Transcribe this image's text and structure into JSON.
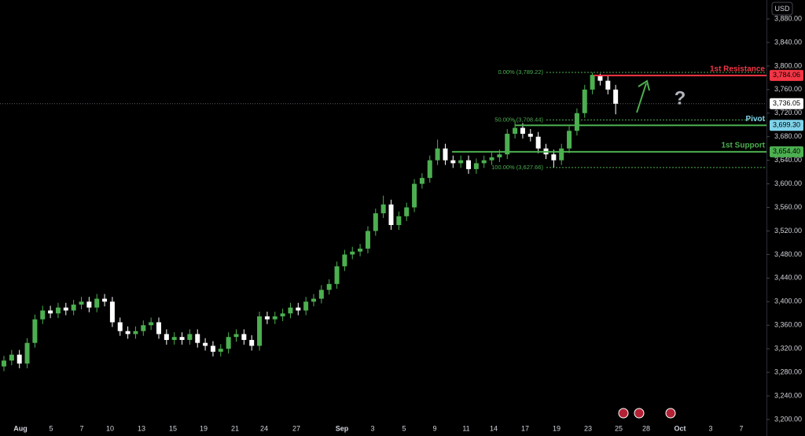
{
  "chart_data": {
    "type": "candlestick",
    "currency": "USD",
    "ylim": [
      3200,
      3880
    ],
    "yticks": [
      {
        "value": 3200,
        "label": "3,200.00"
      },
      {
        "value": 3240,
        "label": "3,240.00"
      },
      {
        "value": 3280,
        "label": "3,280.00"
      },
      {
        "value": 3320,
        "label": "3,320.00"
      },
      {
        "value": 3360,
        "label": "3,360.00"
      },
      {
        "value": 3400,
        "label": "3,400.00"
      },
      {
        "value": 3440,
        "label": "3,440.00"
      },
      {
        "value": 3480,
        "label": "3,480.00"
      },
      {
        "value": 3520,
        "label": "3,520.00"
      },
      {
        "value": 3560,
        "label": "3,560.00"
      },
      {
        "value": 3600,
        "label": "3,600.00"
      },
      {
        "value": 3640,
        "label": "3,640.00"
      },
      {
        "value": 3680,
        "label": "3,680.00"
      },
      {
        "value": 3720,
        "label": "3,720.00"
      },
      {
        "value": 3760,
        "label": "3,760.00"
      },
      {
        "value": 3800,
        "label": "3,800.00"
      },
      {
        "value": 3840,
        "label": "3,840.00"
      },
      {
        "value": 3880,
        "label": "3,880.00"
      }
    ],
    "x_labels": [
      "Aug",
      "5",
      "7",
      "10",
      "13",
      "15",
      "19",
      "21",
      "24",
      "27",
      "Sep",
      "3",
      "5",
      "9",
      "11",
      "14",
      "17",
      "19",
      "23",
      "25",
      "28",
      "Oct",
      "3",
      "7"
    ],
    "up_color": "#4caf50",
    "down_color": "#ffffff",
    "open": [
      3290,
      3300,
      3310,
      3295,
      3330,
      3370,
      3385,
      3380,
      3390,
      3385,
      3395,
      3400,
      3390,
      3405,
      3400,
      3365,
      3350,
      3345,
      3350,
      3360,
      3365,
      3345,
      3335,
      3340,
      3335,
      3345,
      3330,
      3325,
      3315,
      3320,
      3340,
      3345,
      3335,
      3325,
      3375,
      3370,
      3375,
      3380,
      3390,
      3385,
      3400,
      3405,
      3420,
      3430,
      3460,
      3480,
      3485,
      3490,
      3520,
      3550,
      3565,
      3530,
      3545,
      3560,
      3600,
      3610,
      3640,
      3660,
      3640,
      3635,
      3640,
      3625,
      3635,
      3640,
      3645,
      3650,
      3685,
      3695,
      3685,
      3680,
      3660,
      3650,
      3640,
      3660,
      3690,
      3720,
      3760,
      3785,
      3775,
      3760
    ],
    "high": [
      3308,
      3318,
      3318,
      3338,
      3378,
      3393,
      3393,
      3398,
      3398,
      3403,
      3408,
      3408,
      3413,
      3413,
      3408,
      3373,
      3358,
      3358,
      3368,
      3373,
      3373,
      3353,
      3348,
      3348,
      3353,
      3353,
      3338,
      3333,
      3328,
      3348,
      3353,
      3353,
      3343,
      3383,
      3383,
      3383,
      3388,
      3398,
      3398,
      3408,
      3413,
      3428,
      3438,
      3468,
      3488,
      3493,
      3498,
      3528,
      3558,
      3580,
      3573,
      3553,
      3568,
      3608,
      3618,
      3648,
      3675,
      3668,
      3648,
      3648,
      3648,
      3643,
      3648,
      3653,
      3658,
      3693,
      3708,
      3703,
      3693,
      3688,
      3668,
      3658,
      3668,
      3698,
      3728,
      3768,
      3789,
      3787,
      3783,
      3768
    ],
    "low": [
      3282,
      3292,
      3287,
      3287,
      3322,
      3362,
      3372,
      3372,
      3377,
      3377,
      3387,
      3382,
      3382,
      3392,
      3357,
      3342,
      3337,
      3337,
      3342,
      3352,
      3337,
      3327,
      3327,
      3327,
      3327,
      3322,
      3317,
      3307,
      3307,
      3312,
      3332,
      3327,
      3317,
      3317,
      3362,
      3362,
      3367,
      3372,
      3377,
      3377,
      3392,
      3397,
      3412,
      3422,
      3452,
      3472,
      3477,
      3482,
      3512,
      3542,
      3522,
      3522,
      3537,
      3552,
      3592,
      3602,
      3632,
      3632,
      3627,
      3627,
      3617,
      3617,
      3627,
      3632,
      3637,
      3642,
      3677,
      3677,
      3672,
      3652,
      3642,
      3628,
      3632,
      3652,
      3682,
      3712,
      3752,
      3767,
      3752,
      3718
    ],
    "close": [
      3300,
      3310,
      3295,
      3330,
      3370,
      3385,
      3380,
      3390,
      3385,
      3395,
      3400,
      3390,
      3405,
      3400,
      3365,
      3350,
      3345,
      3350,
      3360,
      3365,
      3345,
      3335,
      3340,
      3335,
      3345,
      3330,
      3325,
      3315,
      3320,
      3340,
      3345,
      3335,
      3325,
      3375,
      3370,
      3375,
      3380,
      3390,
      3385,
      3400,
      3405,
      3420,
      3430,
      3460,
      3480,
      3485,
      3490,
      3520,
      3550,
      3565,
      3530,
      3545,
      3560,
      3600,
      3610,
      3640,
      3660,
      3640,
      3635,
      3640,
      3625,
      3635,
      3640,
      3645,
      3650,
      3685,
      3695,
      3685,
      3680,
      3660,
      3650,
      3640,
      3660,
      3690,
      3720,
      3760,
      3785,
      3775,
      3760,
      3736
    ],
    "levels": [
      {
        "name": "1st Resistance",
        "value": 3784.06,
        "label": "3,784.06",
        "color": "#f23645"
      },
      {
        "name": "Pivot",
        "value": 3699.3,
        "label": "3,699.30",
        "color": "#7fd3ea"
      },
      {
        "name": "1st Support",
        "value": 3654.4,
        "label": "3,654.40",
        "color": "#4caf50"
      }
    ],
    "fib_levels": [
      {
        "value": 3789.22,
        "label": "0.00% (3,789.22)"
      },
      {
        "value": 3708.44,
        "label": "50.00% (3,708.44)"
      },
      {
        "value": 3627.66,
        "label": "100.00% (3,627.66)"
      }
    ],
    "fib_color": "#4caf50",
    "last_price": {
      "value": 3736.05,
      "label": "3,736.05"
    },
    "annotation": "?"
  }
}
